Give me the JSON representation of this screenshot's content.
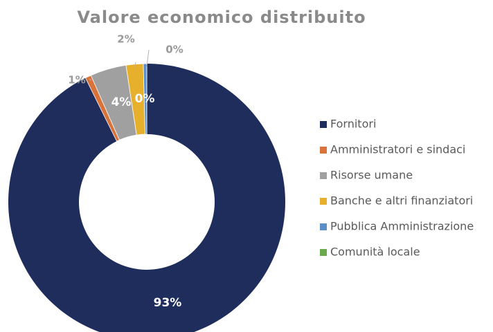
{
  "chart_data": {
    "type": "donut",
    "title": "Valore economico distribuito",
    "categories": [
      "Fornitori",
      "Amministratori e sindaci",
      "Risorse umane",
      "Banche e altri finanziatori",
      "Pubblica Amministrazione",
      "Comunità locale"
    ],
    "values": [
      92.6,
      0.7,
      4.2,
      2.0,
      0.4,
      0.0
    ],
    "value_labels": [
      "93%",
      "1%",
      "4%",
      "2%",
      "0%",
      "0%"
    ],
    "colors": [
      "#1f2d5c",
      "#d9733a",
      "#a0a0a0",
      "#e6b02c",
      "#5b8fc9",
      "#6aaa4c"
    ],
    "legend": "right"
  }
}
